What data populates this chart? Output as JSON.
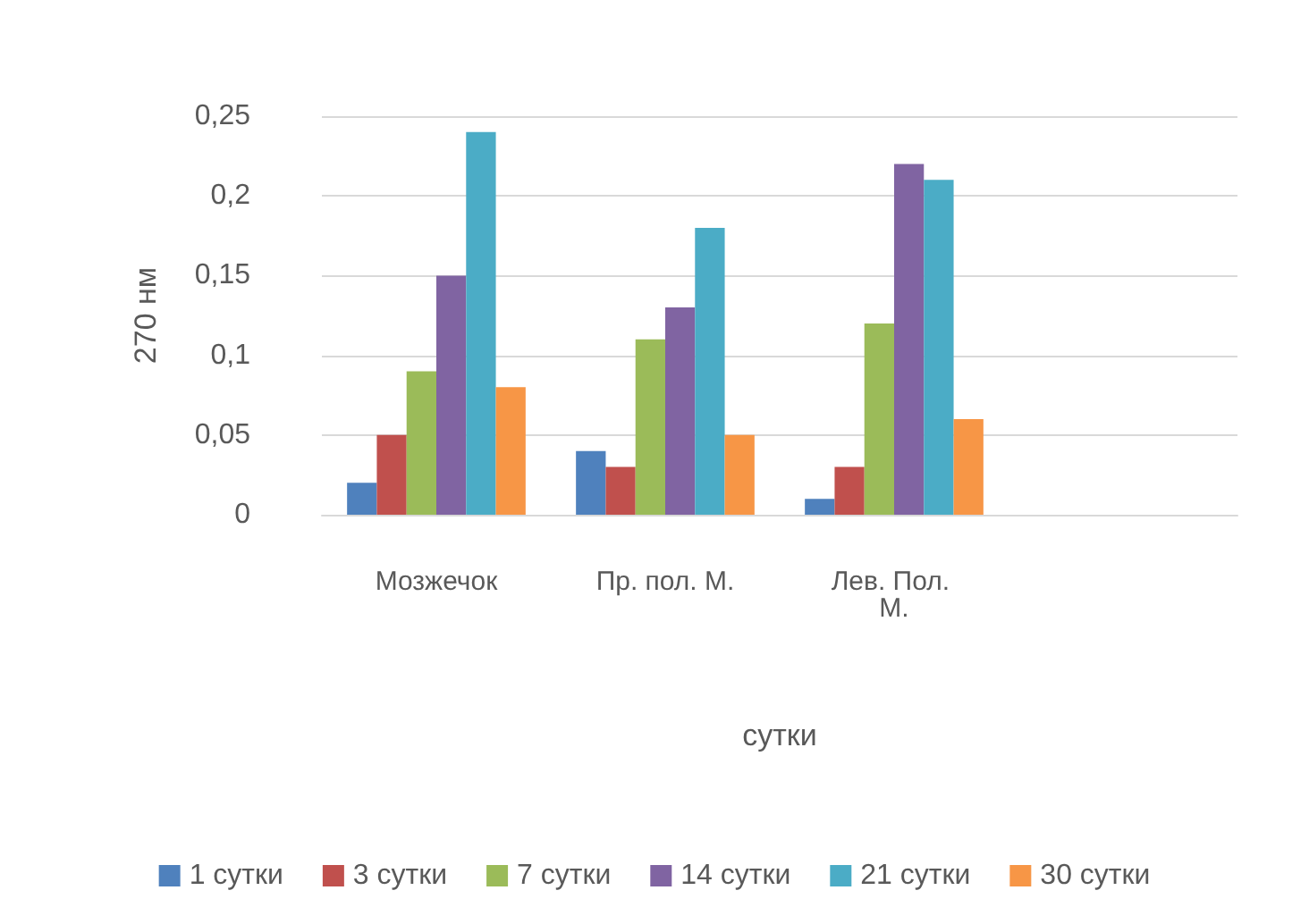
{
  "chart_data": {
    "type": "bar",
    "xlabel": "сутки",
    "ylabel": "270 нм",
    "categories": [
      "Мозжечок",
      "Пр. пол. М.",
      "Лев. Пол. М.",
      null
    ],
    "series": [
      {
        "name": "1 сутки",
        "color": "#4f81bd",
        "values": [
          0.02,
          0.04,
          0.01,
          null
        ]
      },
      {
        "name": "3 сутки",
        "color": "#c0504d",
        "values": [
          0.05,
          0.03,
          0.03,
          null
        ]
      },
      {
        "name": "7 сутки",
        "color": "#9bbb59",
        "values": [
          0.09,
          0.11,
          0.12,
          null
        ]
      },
      {
        "name": "14 сутки",
        "color": "#8064a2",
        "values": [
          0.15,
          0.13,
          0.22,
          null
        ]
      },
      {
        "name": "21 сутки",
        "color": "#4bacc6",
        "values": [
          0.24,
          0.18,
          0.21,
          null
        ]
      },
      {
        "name": "30 сутки",
        "color": "#f79646",
        "values": [
          0.08,
          0.05,
          0.06,
          null
        ]
      }
    ],
    "ylim": [
      0,
      0.25
    ],
    "yticks": [
      0,
      {
        "value": 0.05,
        "label": "0,05"
      },
      {
        "value": 0.1,
        "label": "0,1"
      },
      {
        "value": 0.15,
        "label": "0,15"
      },
      {
        "value": 0.2,
        "label": "0,2"
      },
      {
        "value": 0.25,
        "label": "0,25"
      }
    ],
    "grid": "y",
    "legend": "bottom"
  }
}
